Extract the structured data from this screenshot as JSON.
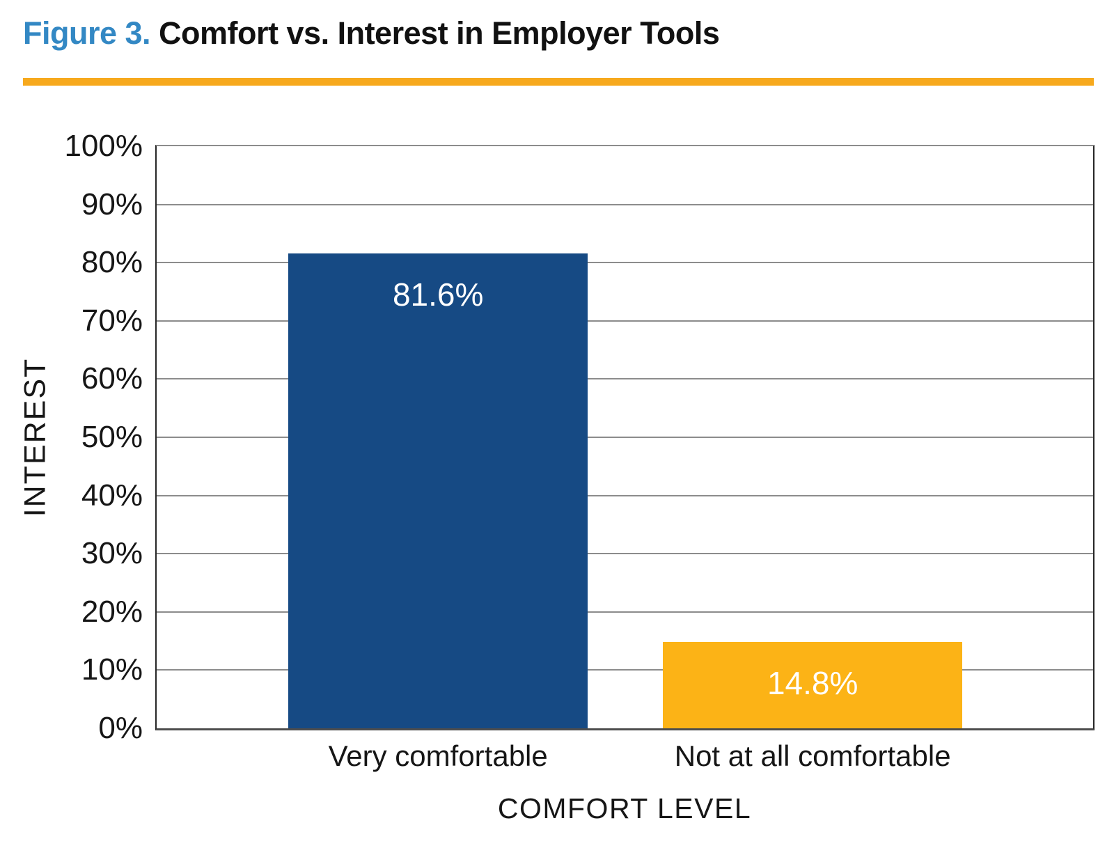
{
  "figure": {
    "label": "Figure 3.",
    "title": "Comfort vs. Interest in Employer Tools"
  },
  "colors": {
    "figure_label_blue": "#3388C4",
    "title_black": "#111111",
    "rule_orange": "#F7A91D",
    "bar_blue": "#164A84",
    "bar_orange": "#FCB316",
    "gridline_gray": "#8C8C8C",
    "axis_dark": "#262626",
    "bar_label_white": "#FFFFFF"
  },
  "chart_data": {
    "type": "bar",
    "title": "Figure 3. Comfort vs. Interest in Employer Tools",
    "categories": [
      "Very comfortable",
      "Not at all comfortable"
    ],
    "values": [
      81.6,
      14.8
    ],
    "value_labels": [
      "81.6%",
      "14.8%"
    ],
    "series_colors": [
      "#164A84",
      "#FCB316"
    ],
    "xlabel": "COMFORT LEVEL",
    "ylabel": "INTEREST",
    "ylim": [
      0,
      100
    ],
    "ytick_step": 10,
    "ytick_labels": [
      "0%",
      "10%",
      "20%",
      "30%",
      "40%",
      "50%",
      "60%",
      "70%",
      "80%",
      "90%",
      "100%"
    ],
    "grid": true,
    "legend": false,
    "value_label_position": "inside-top",
    "layout": {
      "bar_left_pct": [
        14.05,
        54.05
      ],
      "bar_width_pct": 32.0
    }
  }
}
